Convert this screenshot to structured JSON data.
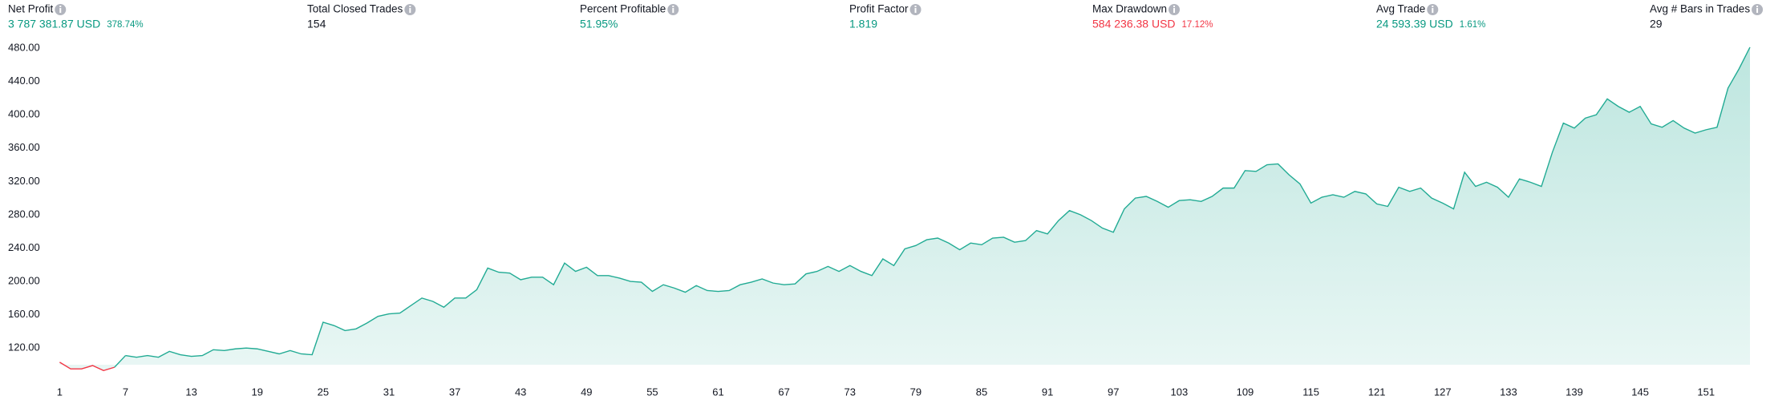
{
  "metrics": [
    {
      "label": "Net Profit",
      "value": "3 787 381.87 USD",
      "percent": "378.74%",
      "color": "#089981"
    },
    {
      "label": "Total Closed Trades",
      "value": "154",
      "color": "#131722"
    },
    {
      "label": "Percent Profitable",
      "value": "51.95%",
      "color": "#089981"
    },
    {
      "label": "Profit Factor",
      "value": "1.819",
      "color": "#089981"
    },
    {
      "label": "Max Drawdown",
      "value": "584 236.38 USD",
      "percent": "17.12%",
      "color": "#f23645"
    },
    {
      "label": "Avg Trade",
      "value": "24 593.39 USD",
      "percent": "1.61%",
      "color": "#089981"
    },
    {
      "label": "Avg # Bars in Trades",
      "value": "29",
      "color": "#131722"
    }
  ],
  "chart_data": {
    "type": "area",
    "color": "#22ab94",
    "negative_color": "#f23645",
    "x": [
      1,
      2,
      3,
      4,
      5,
      6,
      7,
      8,
      9,
      10,
      11,
      12,
      13,
      14,
      15,
      16,
      17,
      18,
      19,
      20,
      21,
      22,
      23,
      24,
      25,
      26,
      27,
      28,
      29,
      30,
      31,
      32,
      33,
      34,
      35,
      36,
      37,
      38,
      39,
      40,
      41,
      42,
      43,
      44,
      45,
      46,
      47,
      48,
      49,
      50,
      51,
      52,
      53,
      54,
      55,
      56,
      57,
      58,
      59,
      60,
      61,
      62,
      63,
      64,
      65,
      66,
      67,
      68,
      69,
      70,
      71,
      72,
      73,
      74,
      75,
      76,
      77,
      78,
      79,
      80,
      81,
      82,
      83,
      84,
      85,
      86,
      87,
      88,
      89,
      90,
      91,
      92,
      93,
      94,
      95,
      96,
      97,
      98,
      99,
      100,
      101,
      102,
      103,
      104,
      105,
      106,
      107,
      108,
      109,
      110,
      111,
      112,
      113,
      114,
      115,
      116,
      117,
      118,
      119,
      120,
      121,
      122,
      123,
      124,
      125,
      126,
      127,
      128,
      129,
      130,
      131,
      132,
      133,
      134,
      135,
      136,
      137,
      138,
      139,
      140,
      141,
      142,
      143,
      144,
      145,
      146,
      147,
      148,
      149,
      150,
      151,
      152,
      153,
      154,
      155
    ],
    "values": [
      103,
      95,
      95,
      99,
      93,
      97,
      111,
      109,
      111,
      109,
      116,
      112,
      110,
      111,
      118,
      117,
      119,
      120,
      119,
      116,
      113,
      117,
      113,
      112,
      151,
      147,
      141,
      143,
      150,
      158,
      161,
      162,
      171,
      180,
      176,
      169,
      180,
      180,
      190,
      216,
      211,
      210,
      202,
      205,
      205,
      196,
      222,
      212,
      217,
      207,
      207,
      204,
      200,
      199,
      188,
      196,
      192,
      187,
      195,
      189,
      188,
      189,
      196,
      199,
      203,
      198,
      196,
      197,
      209,
      212,
      218,
      212,
      219,
      212,
      207,
      227,
      219,
      239,
      243,
      250,
      252,
      246,
      238,
      246,
      244,
      252,
      253,
      247,
      249,
      261,
      257,
      273,
      285,
      280,
      273,
      264,
      259,
      287,
      300,
      302,
      296,
      289,
      297,
      298,
      296,
      302,
      312,
      312,
      333,
      332,
      340,
      341,
      328,
      317,
      294,
      301,
      304,
      301,
      308,
      305,
      293,
      290,
      313,
      308,
      312,
      300,
      294,
      287,
      331,
      314,
      319,
      313,
      301,
      323,
      319,
      314,
      355,
      390,
      384,
      396,
      400,
      419,
      410,
      403,
      410,
      389,
      385,
      393,
      384,
      378,
      382,
      385,
      432,
      455,
      481
    ],
    "xlim": [
      1,
      155
    ],
    "ylim": [
      100,
      480
    ],
    "xticks": [
      1,
      7,
      13,
      19,
      25,
      31,
      37,
      43,
      49,
      55,
      61,
      67,
      73,
      79,
      85,
      91,
      97,
      103,
      109,
      115,
      121,
      127,
      133,
      139,
      145,
      151
    ],
    "yticks": [
      {
        "value": 120,
        "label": "120.00"
      },
      {
        "value": 160,
        "label": "160.00"
      },
      {
        "value": 200,
        "label": "200.00"
      },
      {
        "value": 240,
        "label": "240.00"
      },
      {
        "value": 280,
        "label": "280.00"
      },
      {
        "value": 320,
        "label": "320.00"
      },
      {
        "value": 360,
        "label": "360.00"
      },
      {
        "value": 400,
        "label": "400.00"
      },
      {
        "value": 440,
        "label": "440.00"
      },
      {
        "value": 480,
        "label": "480.00"
      }
    ]
  }
}
